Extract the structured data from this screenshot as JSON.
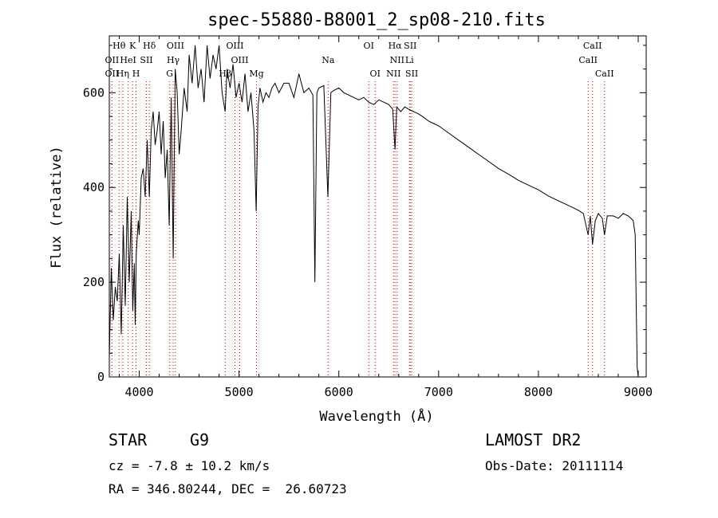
{
  "chart_data": {
    "type": "line",
    "title": "spec-55880-B8001_2_sp08-210.fits",
    "xlabel": "Wavelength (Å)",
    "ylabel": "Flux (relative)",
    "xlim": [
      3700,
      9080
    ],
    "ylim": [
      0,
      720
    ],
    "xticks": [
      4000,
      5000,
      6000,
      7000,
      8000,
      9000
    ],
    "yticks": [
      0,
      200,
      400,
      600
    ],
    "grid": false,
    "series": [
      {
        "color": "#000000",
        "x": [
          3700,
          3720,
          3740,
          3760,
          3780,
          3800,
          3820,
          3840,
          3860,
          3880,
          3900,
          3920,
          3935,
          3950,
          3960,
          3970,
          3990,
          4000,
          4020,
          4040,
          4060,
          4080,
          4101,
          4120,
          4140,
          4160,
          4180,
          4200,
          4220,
          4240,
          4260,
          4280,
          4300,
          4320,
          4340,
          4360,
          4380,
          4400,
          4420,
          4450,
          4480,
          4500,
          4530,
          4560,
          4590,
          4620,
          4650,
          4680,
          4710,
          4740,
          4770,
          4800,
          4830,
          4861,
          4880,
          4910,
          4940,
          4970,
          5000,
          5030,
          5060,
          5090,
          5120,
          5150,
          5172,
          5190,
          5210,
          5240,
          5270,
          5300,
          5330,
          5360,
          5400,
          5450,
          5500,
          5550,
          5600,
          5650,
          5700,
          5740,
          5760,
          5780,
          5800,
          5850,
          5890,
          5920,
          5950,
          6000,
          6050,
          6100,
          6150,
          6200,
          6250,
          6300,
          6350,
          6400,
          6450,
          6500,
          6540,
          6563,
          6580,
          6620,
          6660,
          6700,
          6750,
          6800,
          6850,
          6900,
          6950,
          7000,
          7100,
          7200,
          7300,
          7400,
          7500,
          7600,
          7700,
          7800,
          7900,
          8000,
          8100,
          8200,
          8300,
          8400,
          8450,
          8498,
          8520,
          8542,
          8570,
          8600,
          8640,
          8662,
          8690,
          8750,
          8800,
          8850,
          8900,
          8950,
          8970,
          8980,
          8990,
          9000
        ],
        "y": [
          40,
          230,
          120,
          190,
          160,
          260,
          90,
          320,
          150,
          380,
          200,
          350,
          140,
          240,
          110,
          260,
          330,
          300,
          420,
          440,
          380,
          500,
          380,
          520,
          560,
          490,
          520,
          560,
          470,
          540,
          420,
          480,
          320,
          590,
          250,
          650,
          600,
          470,
          520,
          610,
          560,
          680,
          620,
          700,
          610,
          650,
          580,
          700,
          630,
          680,
          650,
          700,
          600,
          560,
          650,
          610,
          660,
          590,
          620,
          580,
          640,
          560,
          600,
          520,
          350,
          570,
          610,
          580,
          600,
          590,
          610,
          620,
          600,
          620,
          620,
          590,
          640,
          600,
          610,
          595,
          200,
          600,
          610,
          615,
          380,
          600,
          605,
          610,
          600,
          595,
          590,
          585,
          590,
          580,
          575,
          585,
          580,
          575,
          565,
          480,
          570,
          560,
          570,
          565,
          560,
          555,
          548,
          540,
          535,
          530,
          515,
          500,
          485,
          470,
          455,
          440,
          428,
          415,
          405,
          395,
          382,
          372,
          362,
          352,
          345,
          300,
          340,
          280,
          330,
          345,
          335,
          300,
          340,
          340,
          335,
          345,
          340,
          330,
          300,
          150,
          20,
          0
        ]
      }
    ],
    "spectral_lines": [
      {
        "label": "Hθ",
        "wavelength": 3798,
        "row": 0
      },
      {
        "label": "K",
        "wavelength": 3934,
        "row": 0
      },
      {
        "label": "Hδ",
        "wavelength": 4102,
        "row": 0
      },
      {
        "label": "OIII",
        "wavelength": 4363,
        "row": 0
      },
      {
        "label": "OIII",
        "wavelength": 4959,
        "row": 0
      },
      {
        "label": "OI",
        "wavelength": 6300,
        "row": 0
      },
      {
        "label": "Hα",
        "wavelength": 6563,
        "row": 0
      },
      {
        "label": "SII",
        "wavelength": 6716,
        "row": 0
      },
      {
        "label": "CaII",
        "wavelength": 8542,
        "row": 0
      },
      {
        "label": "OII",
        "wavelength": 3727,
        "row": 1
      },
      {
        "label": "HeI",
        "wavelength": 3889,
        "row": 1
      },
      {
        "label": "SII",
        "wavelength": 4072,
        "row": 1
      },
      {
        "label": "Hγ",
        "wavelength": 4340,
        "row": 1
      },
      {
        "label": "OIII",
        "wavelength": 5007,
        "row": 1
      },
      {
        "label": "Na",
        "wavelength": 5893,
        "row": 1
      },
      {
        "label": "NII",
        "wavelength": 6584,
        "row": 1
      },
      {
        "label": "Li",
        "wavelength": 6708,
        "row": 1
      },
      {
        "label": "CaII",
        "wavelength": 8498,
        "row": 1
      },
      {
        "label": "OII",
        "wavelength": 3727,
        "row": 2
      },
      {
        "label": "Hη",
        "wavelength": 3835,
        "row": 2
      },
      {
        "label": "H",
        "wavelength": 3968,
        "row": 2
      },
      {
        "label": "G",
        "wavelength": 4305,
        "row": 2
      },
      {
        "label": "Hβ",
        "wavelength": 4861,
        "row": 2
      },
      {
        "label": "Mg",
        "wavelength": 5175,
        "row": 2
      },
      {
        "label": "OI",
        "wavelength": 6364,
        "row": 2
      },
      {
        "label": "NII",
        "wavelength": 6548,
        "row": 2
      },
      {
        "label": "SII",
        "wavelength": 6731,
        "row": 2
      },
      {
        "label": "CaII",
        "wavelength": 8662,
        "row": 2
      }
    ],
    "line_marker_color": "#cc0000"
  },
  "info": {
    "class": "STAR",
    "subclass": "G9",
    "survey": "LAMOST DR2",
    "cz": "cz = -7.8 ± 10.2 km/s",
    "obs_date": "Obs-Date: 20111114",
    "coords": "RA = 346.80244, DEC =  26.60723"
  }
}
